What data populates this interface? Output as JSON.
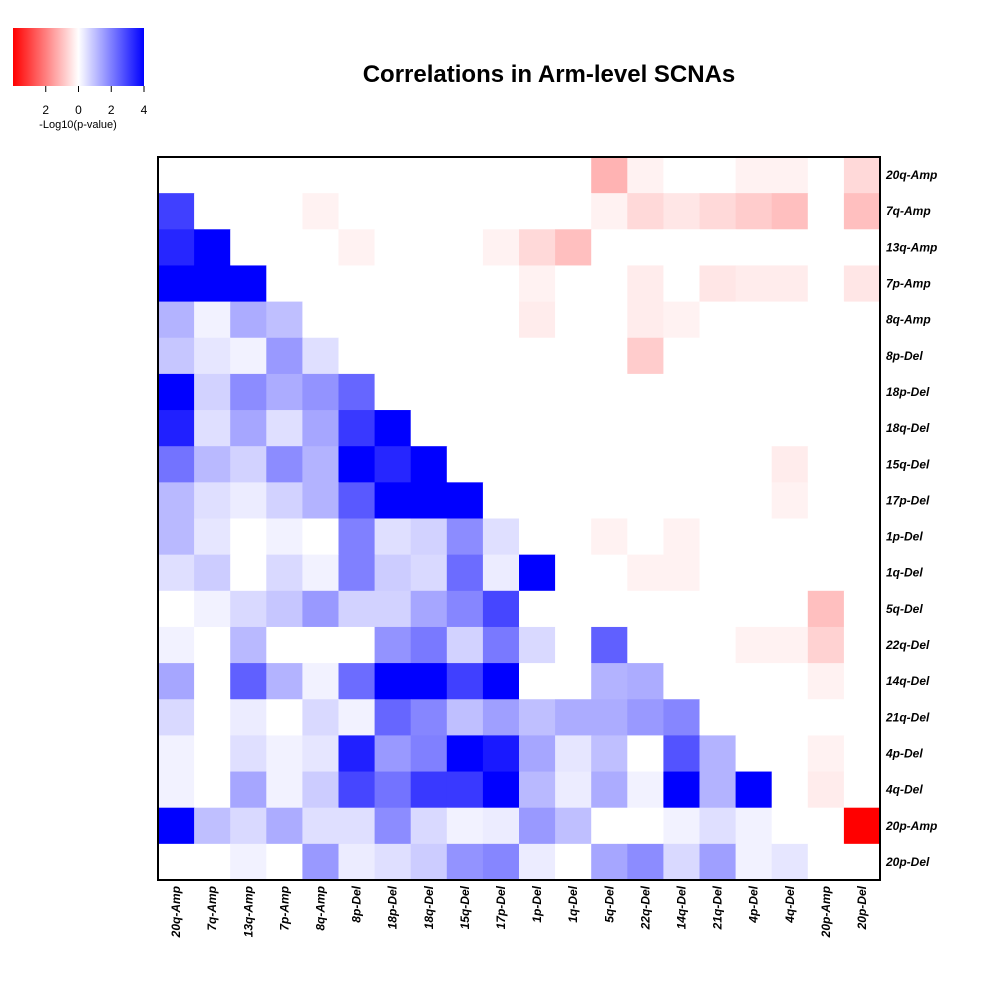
{
  "chart_data": {
    "type": "heatmap",
    "title": "Correlations in Arm-level SCNAs",
    "legend": {
      "title": "-Log10(p-value)",
      "tick_labels": [
        "2",
        "0",
        "2",
        "4"
      ],
      "tick_values": [
        -2,
        0,
        2,
        4
      ],
      "range": [
        -4,
        4
      ],
      "colors": {
        "negative": "#ff0000",
        "zero": "#ffffff",
        "positive": "#0000ff"
      },
      "placement": "top-left"
    },
    "rows": [
      "20q-Amp",
      "7q-Amp",
      "13q-Amp",
      "7p-Amp",
      "8q-Amp",
      "8p-Del",
      "18p-Del",
      "18q-Del",
      "15q-Del",
      "17p-Del",
      "1p-Del",
      "1q-Del",
      "5q-Del",
      "22q-Del",
      "14q-Del",
      "21q-Del",
      "4p-Del",
      "4q-Del",
      "20p-Amp",
      "20p-Del"
    ],
    "columns": [
      "20q-Amp",
      "7q-Amp",
      "13q-Amp",
      "7p-Amp",
      "8q-Amp",
      "8p-Del",
      "18p-Del",
      "18q-Del",
      "15q-Del",
      "17p-Del",
      "1p-Del",
      "1q-Del",
      "5q-Del",
      "22q-Del",
      "14q-Del",
      "21q-Del",
      "4p-Del",
      "4q-Del",
      "20p-Amp",
      "20p-Del"
    ],
    "values": [
      [
        0,
        0,
        0,
        0,
        0,
        0,
        0,
        0,
        0,
        0,
        0,
        0,
        -1.2,
        -0.2,
        0,
        0,
        -0.2,
        -0.2,
        0,
        -0.6
      ],
      [
        3.0,
        0,
        0,
        0,
        -0.2,
        0,
        0,
        0,
        0,
        0,
        0,
        0,
        -0.2,
        -0.6,
        -0.4,
        -0.6,
        -0.8,
        -1.0,
        0,
        -1.0
      ],
      [
        3.4,
        4,
        0,
        0,
        0,
        -0.2,
        0,
        0,
        0,
        -0.2,
        -0.6,
        -1.0,
        0,
        0,
        0,
        0,
        0,
        0,
        0,
        0
      ],
      [
        4,
        4,
        4,
        0,
        0,
        0,
        0,
        0,
        0,
        0,
        -0.2,
        0,
        0,
        -0.3,
        0,
        -0.4,
        -0.3,
        -0.3,
        0,
        -0.4
      ],
      [
        1.2,
        0.2,
        1.3,
        1.0,
        0,
        0,
        0,
        0,
        0,
        0,
        -0.3,
        0,
        0,
        -0.3,
        -0.2,
        0,
        0,
        0,
        0,
        0
      ],
      [
        0.9,
        0.4,
        0.2,
        1.6,
        0.5,
        0,
        0,
        0,
        0,
        0,
        0,
        0,
        0,
        -0.8,
        0,
        0,
        0,
        0,
        0,
        0
      ],
      [
        4,
        0.7,
        1.8,
        1.3,
        1.7,
        2.4,
        0,
        0,
        0,
        0,
        0,
        0,
        0,
        0,
        0,
        0,
        0,
        0,
        0,
        0
      ],
      [
        3.5,
        0.5,
        1.4,
        0.5,
        1.4,
        3.1,
        4,
        0,
        0,
        0,
        0,
        0,
        0,
        0,
        0,
        0,
        0,
        0,
        0,
        0
      ],
      [
        2.2,
        1.1,
        0.7,
        1.8,
        1.2,
        4,
        3.4,
        4,
        0,
        0,
        0,
        0,
        0,
        0,
        0,
        0,
        0,
        -0.3,
        0,
        0
      ],
      [
        1.1,
        0.5,
        0.3,
        0.7,
        1.2,
        2.6,
        4,
        4,
        4,
        0,
        0,
        0,
        0,
        0,
        0,
        0,
        0,
        -0.2,
        0,
        0
      ],
      [
        1.1,
        0.4,
        0,
        0.2,
        0,
        2.0,
        0.5,
        0.7,
        1.8,
        0.5,
        0,
        0,
        -0.2,
        0,
        -0.2,
        0,
        0,
        0,
        0,
        0
      ],
      [
        0.5,
        0.8,
        0,
        0.6,
        0.2,
        2.0,
        0.8,
        0.6,
        2.3,
        0.3,
        4,
        0,
        0,
        -0.2,
        -0.2,
        0,
        0,
        0,
        0,
        0
      ],
      [
        0,
        0.2,
        0.6,
        0.9,
        1.6,
        0.7,
        0.7,
        1.4,
        1.9,
        2.9,
        0,
        0,
        0,
        0,
        0,
        0,
        0,
        0,
        -1.0,
        0
      ],
      [
        0.2,
        0,
        1.1,
        0,
        0,
        0,
        1.7,
        2.1,
        0.7,
        2.1,
        0.6,
        0,
        2.5,
        0,
        0,
        0,
        -0.2,
        -0.2,
        -0.7,
        0
      ],
      [
        1.4,
        0,
        2.5,
        1.2,
        0.2,
        2.3,
        4,
        4,
        3.0,
        4,
        0,
        0,
        1.2,
        1.3,
        0,
        0,
        0,
        0,
        -0.2,
        0
      ],
      [
        0.6,
        0,
        0.3,
        0,
        0.6,
        0.2,
        2.4,
        1.9,
        1.0,
        1.5,
        1.0,
        1.3,
        1.3,
        1.6,
        1.9,
        0,
        0,
        0,
        0,
        0
      ],
      [
        0.2,
        0,
        0.5,
        0.2,
        0.4,
        3.5,
        1.6,
        2.0,
        4,
        3.6,
        1.4,
        0.4,
        1.0,
        0,
        2.7,
        1.2,
        0,
        0,
        -0.2,
        0
      ],
      [
        0.2,
        0,
        1.4,
        0.2,
        0.8,
        2.9,
        2.2,
        3.1,
        3.1,
        4,
        1.1,
        0.3,
        1.3,
        0.2,
        4,
        1.2,
        4,
        0,
        -0.3,
        0
      ],
      [
        4,
        1.0,
        0.6,
        1.3,
        0.5,
        0.5,
        1.8,
        0.6,
        0.2,
        0.3,
        1.6,
        1.0,
        0,
        0,
        0.2,
        0.5,
        0.2,
        0,
        0,
        -4
      ],
      [
        0,
        0,
        0.2,
        0,
        1.6,
        0.3,
        0.5,
        0.8,
        1.7,
        1.9,
        0.3,
        0,
        1.4,
        1.8,
        0.6,
        1.5,
        0.2,
        0.4,
        0,
        0
      ]
    ],
    "grid": false
  }
}
